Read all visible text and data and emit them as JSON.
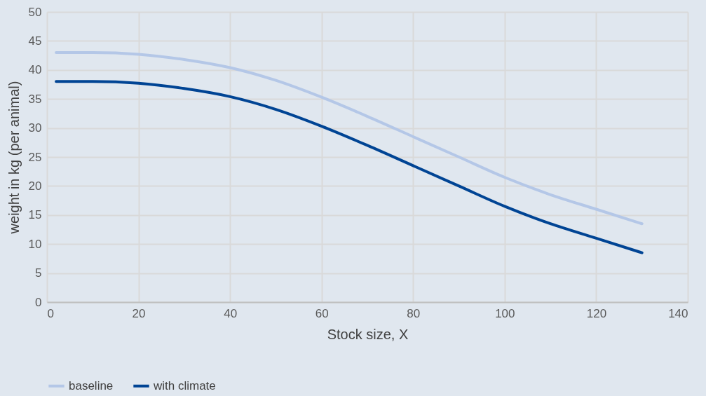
{
  "chart_data": {
    "type": "line",
    "xlabel": "Stock size, X",
    "ylabel": "weight in kg (per animal)",
    "x": [
      2,
      10,
      20,
      30,
      40,
      50,
      60,
      70,
      80,
      90,
      100,
      110,
      120,
      130
    ],
    "series": [
      {
        "name": "baseline",
        "color": "#b4c7e7",
        "values": [
          43,
          43,
          42.7,
          41.8,
          40.4,
          38.2,
          35.3,
          32,
          28.5,
          25,
          21.5,
          18.5,
          16,
          13.5
        ]
      },
      {
        "name": "with climate",
        "color": "#004494",
        "values": [
          38,
          38,
          37.7,
          36.8,
          35.4,
          33.2,
          30.3,
          27,
          23.5,
          20,
          16.5,
          13.5,
          11,
          8.5
        ]
      }
    ],
    "xlim": [
      0,
      140
    ],
    "xticks": [
      0,
      20,
      40,
      60,
      80,
      100,
      120,
      140
    ],
    "ylim": [
      0,
      50
    ],
    "yticks": [
      0,
      5,
      10,
      15,
      20,
      25,
      30,
      35,
      40,
      45,
      50
    ],
    "grid": true,
    "legend": "bottom",
    "marker": "none",
    "line_style": "solid"
  }
}
